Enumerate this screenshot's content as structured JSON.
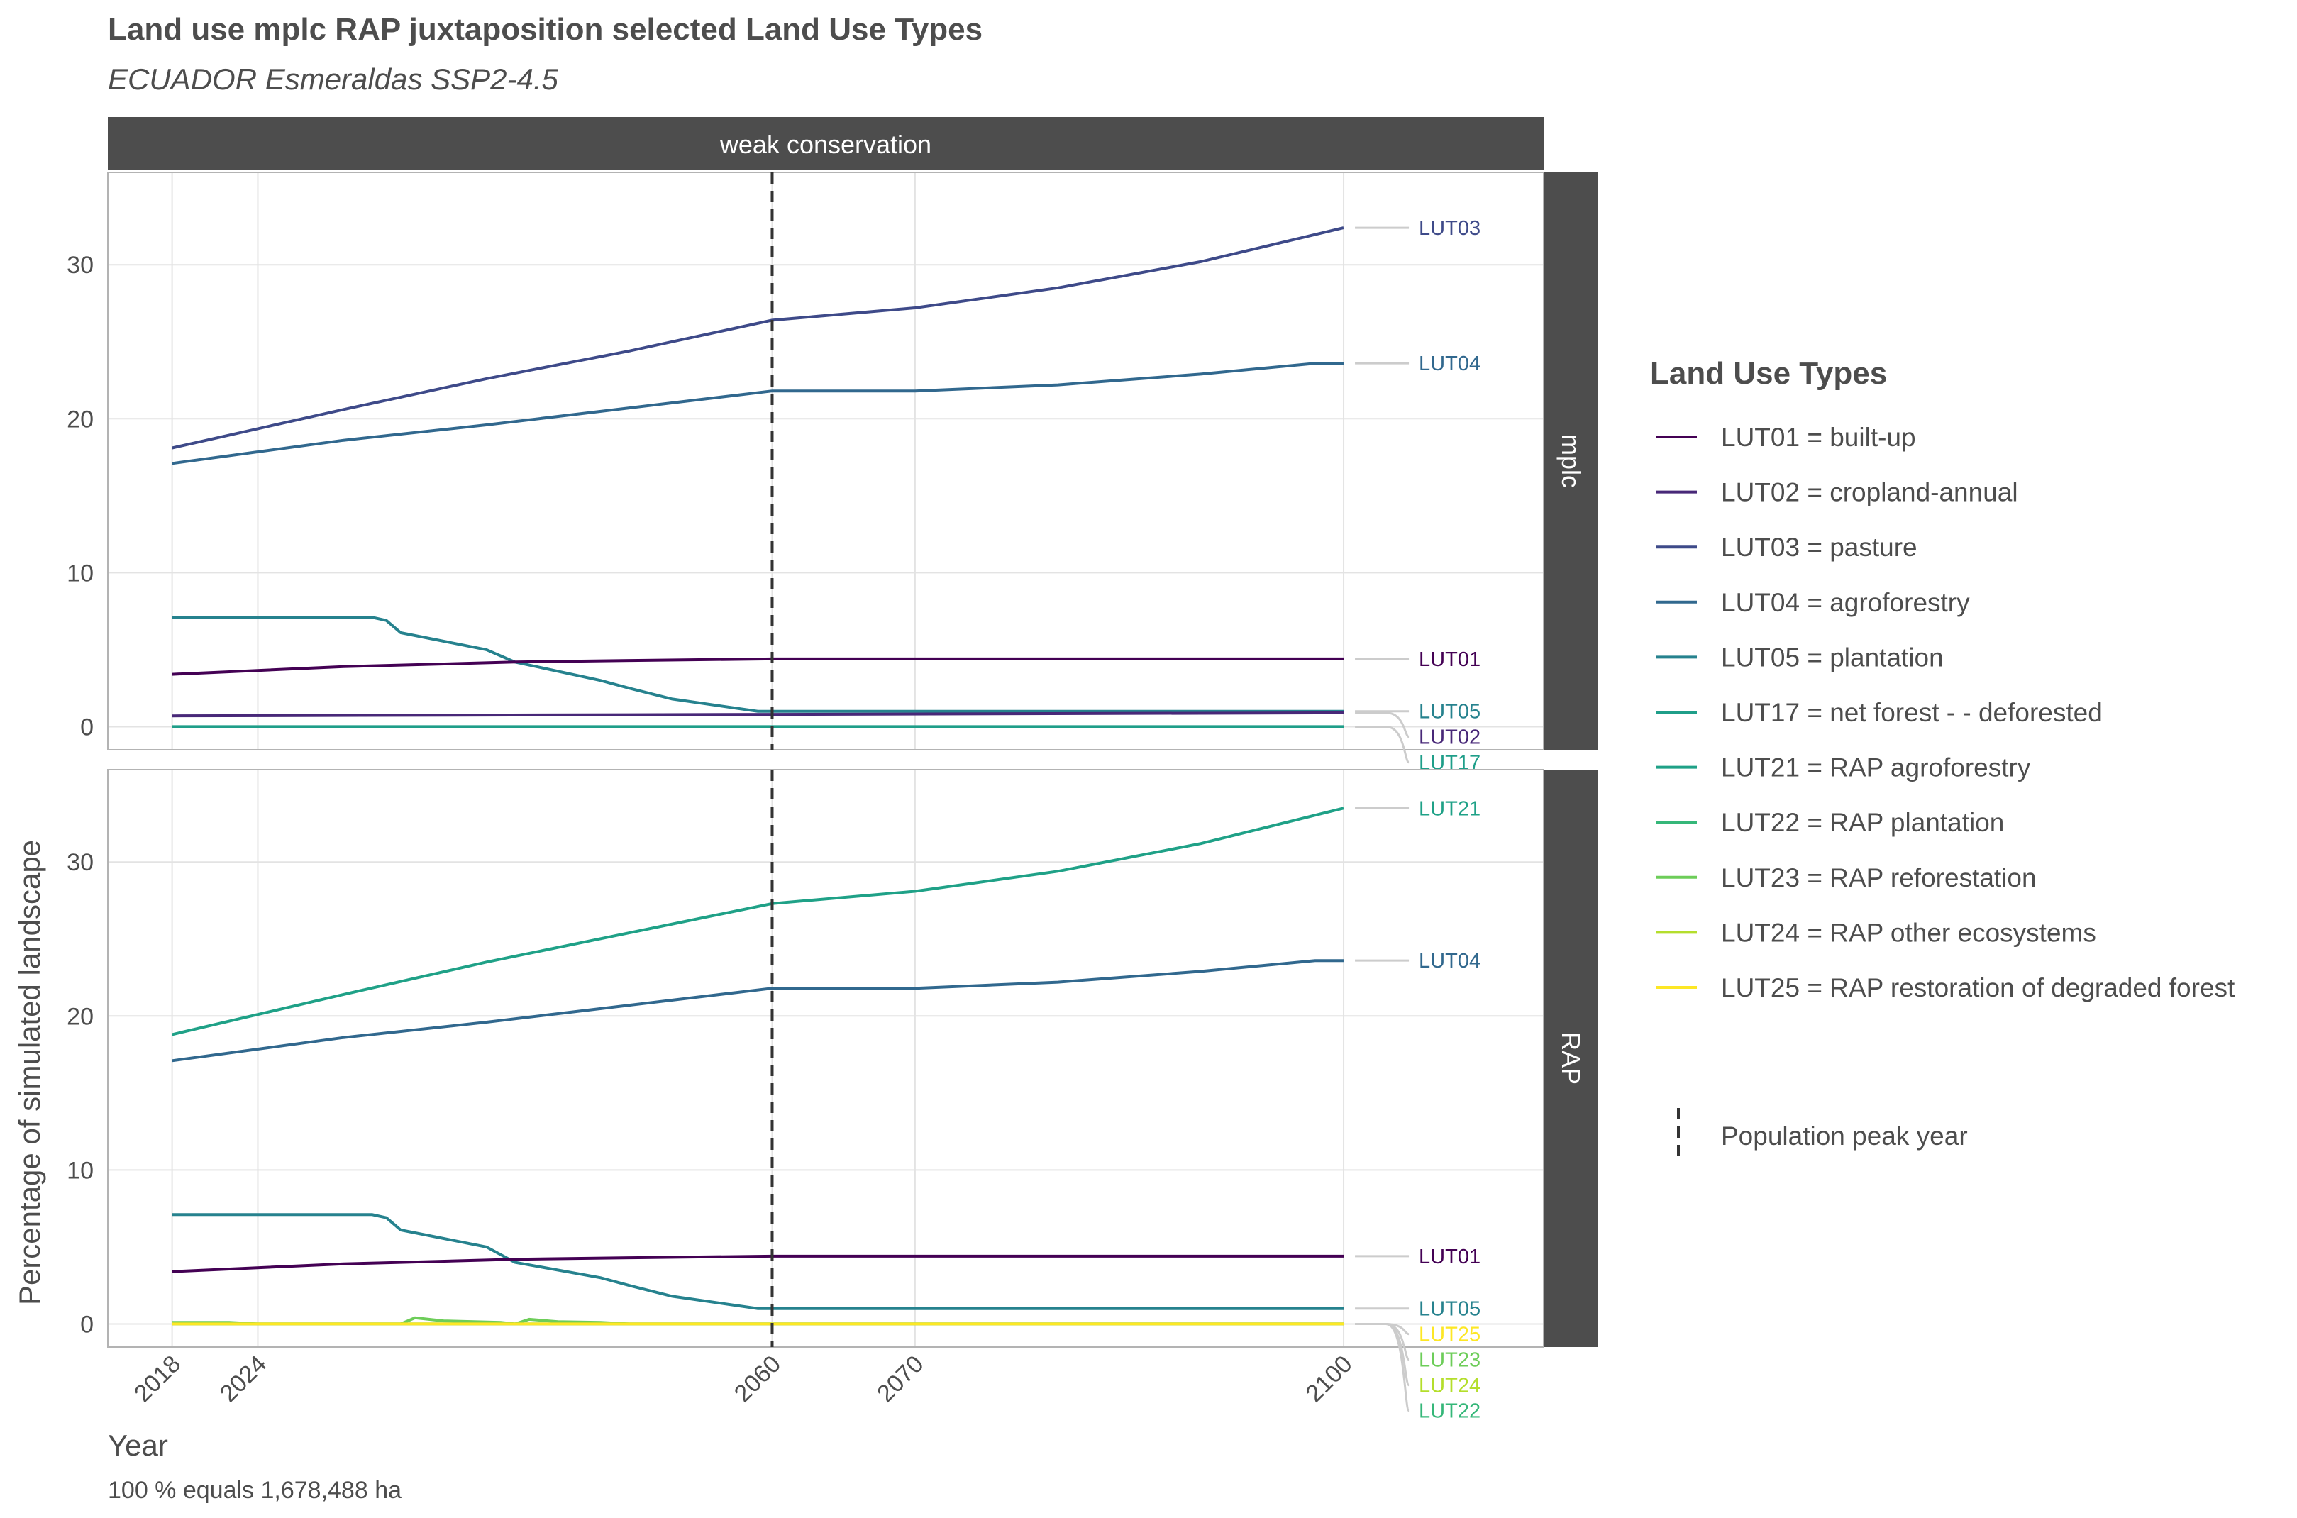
{
  "title": "Land use mplc RAP juxtaposition selected Land Use Types",
  "subtitle": "ECUADOR Esmeraldas SSP2-4.5",
  "caption": "100 % equals 1,678,488 ha",
  "colors": {
    "LUT01": "#440154",
    "LUT02": "#482878",
    "LUT03": "#3E4A89",
    "LUT04": "#31688E",
    "LUT05": "#26828E",
    "LUT17": "#1F9E89",
    "LUT21": "#1FA187",
    "LUT22": "#35B779",
    "LUT23": "#6DCD59",
    "LUT24": "#B4DE2C",
    "LUT25": "#FDE725"
  },
  "chart_data": {
    "type": "line",
    "title": "Land use mplc RAP juxtaposition selected Land Use Types",
    "subtitle": "ECUADOR Esmeraldas SSP2-4.5",
    "xlabel": "Year",
    "ylabel": "Percentage of simulated landscape",
    "column_facet": "weak conservation",
    "x_ticks": [
      2018,
      2024,
      2060,
      2070,
      2100
    ],
    "y_ticks": [
      0,
      10,
      20,
      30
    ],
    "xlim": [
      2013.5,
      2114
    ],
    "ylim": [
      -1.5,
      36
    ],
    "grid": true,
    "legend_position": "right",
    "legend_title": "Land Use Types",
    "legend": [
      {
        "key": "LUT01",
        "label": "LUT01 = built-up"
      },
      {
        "key": "LUT02",
        "label": "LUT02 = cropland-annual"
      },
      {
        "key": "LUT03",
        "label": "LUT03 = pasture"
      },
      {
        "key": "LUT04",
        "label": "LUT04 = agroforestry"
      },
      {
        "key": "LUT05",
        "label": "LUT05 = plantation"
      },
      {
        "key": "LUT17",
        "label": "LUT17 = net forest - - deforested"
      },
      {
        "key": "LUT21",
        "label": "LUT21 = RAP agroforestry"
      },
      {
        "key": "LUT22",
        "label": "LUT22 = RAP plantation"
      },
      {
        "key": "LUT23",
        "label": "LUT23 = RAP reforestation"
      },
      {
        "key": "LUT24",
        "label": "LUT24 = RAP other ecosystems"
      },
      {
        "key": "LUT25",
        "label": "LUT25 = RAP restoration of degraded forest"
      }
    ],
    "vline": {
      "x": 2060,
      "label": "Population peak year"
    },
    "panels": [
      {
        "name": "mplc",
        "series": [
          {
            "name": "LUT03",
            "x": [
              2018,
              2030,
              2040,
              2050,
              2060,
              2070,
              2080,
              2090,
              2100
            ],
            "y": [
              18.1,
              20.6,
              22.6,
              24.4,
              26.4,
              27.2,
              28.5,
              30.2,
              32.4
            ]
          },
          {
            "name": "LUT04",
            "x": [
              2018,
              2030,
              2040,
              2050,
              2060,
              2070,
              2080,
              2090,
              2098,
              2100
            ],
            "y": [
              17.1,
              18.6,
              19.6,
              20.7,
              21.8,
              21.8,
              22.2,
              22.9,
              23.6,
              23.6
            ]
          },
          {
            "name": "LUT05",
            "x": [
              2018,
              2032,
              2033,
              2034,
              2040,
              2042,
              2048,
              2050,
              2053,
              2059,
              2100
            ],
            "y": [
              7.1,
              7.1,
              6.9,
              6.1,
              5.0,
              4.2,
              3.0,
              2.5,
              1.8,
              1.0,
              1.0
            ]
          },
          {
            "name": "LUT01",
            "x": [
              2018,
              2030,
              2042,
              2050,
              2060,
              2100
            ],
            "y": [
              3.4,
              3.9,
              4.2,
              4.3,
              4.4,
              4.4
            ]
          },
          {
            "name": "LUT02",
            "x": [
              2018,
              2060,
              2100
            ],
            "y": [
              0.7,
              0.8,
              0.9
            ]
          },
          {
            "name": "LUT17",
            "x": [
              2018,
              2100
            ],
            "y": [
              0.0,
              0.0
            ]
          }
        ],
        "end_labels": [
          "LUT03",
          "LUT04",
          "LUT01",
          "LUT05",
          "LUT02",
          "LUT17"
        ]
      },
      {
        "name": "RAP",
        "series": [
          {
            "name": "LUT21",
            "x": [
              2018,
              2030,
              2040,
              2050,
              2060,
              2070,
              2080,
              2090,
              2100
            ],
            "y": [
              18.8,
              21.4,
              23.5,
              25.4,
              27.3,
              28.1,
              29.4,
              31.2,
              33.5
            ]
          },
          {
            "name": "LUT04",
            "x": [
              2018,
              2030,
              2040,
              2050,
              2060,
              2070,
              2080,
              2090,
              2098,
              2100
            ],
            "y": [
              17.1,
              18.6,
              19.6,
              20.7,
              21.8,
              21.8,
              22.2,
              22.9,
              23.6,
              23.6
            ]
          },
          {
            "name": "LUT05",
            "x": [
              2018,
              2032,
              2033,
              2034,
              2040,
              2042,
              2048,
              2050,
              2053,
              2059,
              2100
            ],
            "y": [
              7.1,
              7.1,
              6.9,
              6.1,
              5.0,
              4.0,
              3.0,
              2.5,
              1.8,
              1.0,
              1.0
            ]
          },
          {
            "name": "LUT01",
            "x": [
              2018,
              2030,
              2042,
              2050,
              2060,
              2100
            ],
            "y": [
              3.4,
              3.9,
              4.2,
              4.3,
              4.4,
              4.4
            ]
          },
          {
            "name": "LUT23",
            "x": [
              2018,
              2022,
              2024,
              2034,
              2035,
              2037,
              2041,
              2042,
              2043,
              2045,
              2048,
              2050,
              2100
            ],
            "y": [
              0.1,
              0.1,
              0.0,
              0.0,
              0.4,
              0.2,
              0.1,
              0.0,
              0.3,
              0.15,
              0.1,
              0.0,
              0.0
            ]
          },
          {
            "name": "LUT24",
            "x": [
              2018,
              2100
            ],
            "y": [
              0.0,
              0.0
            ]
          },
          {
            "name": "LUT22",
            "x": [
              2018,
              2100
            ],
            "y": [
              0.0,
              0.0
            ]
          },
          {
            "name": "LUT25",
            "x": [
              2018,
              2100
            ],
            "y": [
              0.0,
              0.0
            ]
          }
        ],
        "end_labels": [
          "LUT21",
          "LUT04",
          "LUT01",
          "LUT05",
          "LUT25",
          "LUT23",
          "LUT24",
          "LUT22"
        ]
      }
    ]
  }
}
